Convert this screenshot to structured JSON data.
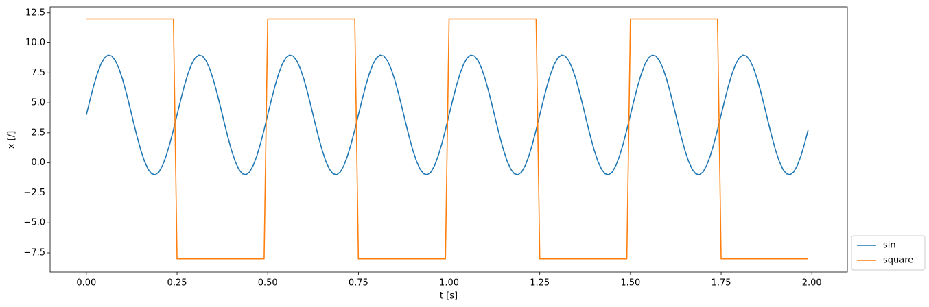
{
  "chart_data": {
    "type": "line",
    "xlabel": "t [s]",
    "ylabel": "x [/]",
    "xlim": [
      -0.1,
      2.098
    ],
    "ylim": [
      -9.1,
      13.0
    ],
    "xticks": [
      {
        "value": 0,
        "label": "0.00"
      },
      0.25,
      {
        "value": 0.5,
        "label": "0.50"
      },
      0.75,
      {
        "value": 1,
        "label": "1.00"
      },
      1.25,
      {
        "value": 1.5,
        "label": "1.50"
      },
      1.75,
      {
        "value": 2,
        "label": "2.00"
      }
    ],
    "yticks": [
      {
        "value": -7.5,
        "label": "−7.5"
      },
      {
        "value": -5,
        "label": "−5.0"
      },
      {
        "value": -2.5,
        "label": "−2.5"
      },
      {
        "value": 0,
        "label": "0.0"
      },
      2.5,
      {
        "value": 5,
        "label": "5.0"
      },
      7.5,
      {
        "value": 10,
        "label": "10.0"
      },
      12.5
    ],
    "legend": "lower right",
    "x": [
      0,
      0.01,
      0.02,
      0.03,
      0.04,
      0.05,
      0.06,
      0.07,
      0.08,
      0.09,
      0.1,
      0.11,
      0.12,
      0.13,
      0.14,
      0.15,
      0.16,
      0.17,
      0.18,
      0.19,
      0.2,
      0.21,
      0.22,
      0.23,
      0.24,
      0.25,
      0.26,
      0.27,
      0.28,
      0.29,
      0.3,
      0.31,
      0.32,
      0.33,
      0.34,
      0.35,
      0.36,
      0.37,
      0.38,
      0.39,
      0.4,
      0.41,
      0.42,
      0.43,
      0.44,
      0.45,
      0.46,
      0.47,
      0.48,
      0.49,
      0.5,
      0.51,
      0.52,
      0.53,
      0.54,
      0.55,
      0.56,
      0.57,
      0.58,
      0.59,
      0.6,
      0.61,
      0.62,
      0.63,
      0.64,
      0.65,
      0.66,
      0.67,
      0.68,
      0.69,
      0.7,
      0.71,
      0.72,
      0.73,
      0.74,
      0.75,
      0.76,
      0.77,
      0.78,
      0.79,
      0.8,
      0.81,
      0.82,
      0.83,
      0.84,
      0.85,
      0.86,
      0.87,
      0.88,
      0.89,
      0.9,
      0.91,
      0.92,
      0.93,
      0.94,
      0.95,
      0.96,
      0.97,
      0.98,
      0.99,
      1,
      1.01,
      1.02,
      1.03,
      1.04,
      1.05,
      1.06,
      1.07,
      1.08,
      1.09,
      1.1,
      1.11,
      1.12,
      1.13,
      1.14,
      1.15,
      1.16,
      1.17,
      1.18,
      1.19,
      1.2,
      1.21,
      1.22,
      1.23,
      1.24,
      1.25,
      1.26,
      1.27,
      1.28,
      1.29,
      1.3,
      1.31,
      1.32,
      1.33,
      1.34,
      1.35,
      1.36,
      1.37,
      1.38,
      1.39,
      1.4,
      1.41,
      1.42,
      1.43,
      1.44,
      1.45,
      1.46,
      1.47,
      1.48,
      1.49,
      1.5,
      1.51,
      1.52,
      1.53,
      1.54,
      1.55,
      1.56,
      1.57,
      1.58,
      1.59,
      1.6,
      1.61,
      1.62,
      1.63,
      1.64,
      1.65,
      1.66,
      1.67,
      1.68,
      1.69,
      1.7,
      1.71,
      1.72,
      1.73,
      1.74,
      1.75,
      1.76,
      1.77,
      1.78,
      1.79,
      1.8,
      1.81,
      1.82,
      1.83,
      1.84,
      1.85,
      1.86,
      1.87,
      1.88,
      1.89,
      1.9,
      1.91,
      1.92,
      1.93,
      1.94,
      1.95,
      1.96,
      1.97,
      1.98,
      1.99
    ],
    "series": [
      {
        "name": "sin",
        "color": "#1f77b4",
        "values": [
          4,
          5.24,
          6.41,
          7.42,
          8.22,
          8.76,
          8.99,
          8.91,
          8.52,
          7.85,
          6.94,
          5.84,
          4.63,
          3.37,
          2.16,
          1.06,
          0.15,
          -0.52,
          -0.91,
          -0.99,
          -0.76,
          -0.22,
          0.58,
          1.59,
          2.76,
          4,
          5.24,
          6.41,
          7.42,
          8.22,
          8.76,
          8.99,
          8.91,
          8.52,
          7.85,
          6.94,
          5.84,
          4.63,
          3.37,
          2.16,
          1.06,
          0.15,
          -0.52,
          -0.91,
          -0.99,
          -0.76,
          -0.22,
          0.58,
          1.59,
          2.76,
          4,
          5.24,
          6.41,
          7.42,
          8.22,
          8.76,
          8.99,
          8.91,
          8.52,
          7.85,
          6.94,
          5.84,
          4.63,
          3.37,
          2.16,
          1.06,
          0.15,
          -0.52,
          -0.91,
          -0.99,
          -0.76,
          -0.22,
          0.58,
          1.59,
          2.76,
          4,
          5.24,
          6.41,
          7.42,
          8.22,
          8.76,
          8.99,
          8.91,
          8.52,
          7.85,
          6.94,
          5.84,
          4.63,
          3.37,
          2.16,
          1.06,
          0.15,
          -0.52,
          -0.91,
          -0.99,
          -0.76,
          -0.22,
          0.58,
          1.59,
          2.76,
          4,
          5.24,
          6.41,
          7.42,
          8.22,
          8.76,
          8.99,
          8.91,
          8.52,
          7.85,
          6.94,
          5.84,
          4.63,
          3.37,
          2.16,
          1.06,
          0.15,
          -0.52,
          -0.91,
          -0.99,
          -0.76,
          -0.22,
          0.58,
          1.59,
          2.76,
          4,
          5.24,
          6.41,
          7.42,
          8.22,
          8.76,
          8.99,
          8.91,
          8.52,
          7.85,
          6.94,
          5.84,
          4.63,
          3.37,
          2.16,
          1.06,
          0.15,
          -0.52,
          -0.91,
          -0.99,
          -0.76,
          -0.22,
          0.58,
          1.59,
          2.76,
          4,
          5.24,
          6.41,
          7.42,
          8.22,
          8.76,
          8.99,
          8.91,
          8.52,
          7.85,
          6.94,
          5.84,
          4.63,
          3.37,
          2.16,
          1.06,
          0.15,
          -0.52,
          -0.91,
          -0.99,
          -0.76,
          -0.22,
          0.58,
          1.59,
          2.76,
          4,
          5.24,
          6.41,
          7.42,
          8.22,
          8.76,
          8.99,
          8.91,
          8.52,
          7.85,
          6.94,
          5.84,
          4.63,
          3.37,
          2.16,
          1.06,
          0.15,
          -0.52,
          -0.91,
          -0.99,
          -0.76,
          -0.22,
          0.58,
          1.59,
          2.76
        ]
      },
      {
        "name": "square",
        "color": "#ff7f0e",
        "values": [
          12,
          12,
          12,
          12,
          12,
          12,
          12,
          12,
          12,
          12,
          12,
          12,
          12,
          12,
          12,
          12,
          12,
          12,
          12,
          12,
          12,
          12,
          12,
          12,
          12,
          -8,
          -8,
          -8,
          -8,
          -8,
          -8,
          -8,
          -8,
          -8,
          -8,
          -8,
          -8,
          -8,
          -8,
          -8,
          -8,
          -8,
          -8,
          -8,
          -8,
          -8,
          -8,
          -8,
          -8,
          -8,
          12,
          12,
          12,
          12,
          12,
          12,
          12,
          12,
          12,
          12,
          12,
          12,
          12,
          12,
          12,
          12,
          12,
          12,
          12,
          12,
          12,
          12,
          12,
          12,
          12,
          -8,
          -8,
          -8,
          -8,
          -8,
          -8,
          -8,
          -8,
          -8,
          -8,
          -8,
          -8,
          -8,
          -8,
          -8,
          -8,
          -8,
          -8,
          -8,
          -8,
          -8,
          -8,
          -8,
          -8,
          -8,
          12,
          12,
          12,
          12,
          12,
          12,
          12,
          12,
          12,
          12,
          12,
          12,
          12,
          12,
          12,
          12,
          12,
          12,
          12,
          12,
          12,
          12,
          12,
          12,
          12,
          -8,
          -8,
          -8,
          -8,
          -8,
          -8,
          -8,
          -8,
          -8,
          -8,
          -8,
          -8,
          -8,
          -8,
          -8,
          -8,
          -8,
          -8,
          -8,
          -8,
          -8,
          -8,
          -8,
          -8,
          -8,
          12,
          12,
          12,
          12,
          12,
          12,
          12,
          12,
          12,
          12,
          12,
          12,
          12,
          12,
          12,
          12,
          12,
          12,
          12,
          12,
          12,
          12,
          12,
          12,
          12,
          -8,
          -8,
          -8,
          -8,
          -8,
          -8,
          -8,
          -8,
          -8,
          -8,
          -8,
          -8,
          -8,
          -8,
          -8,
          -8,
          -8,
          -8,
          -8,
          -8,
          -8,
          -8,
          -8,
          -8,
          -8
        ]
      }
    ]
  }
}
